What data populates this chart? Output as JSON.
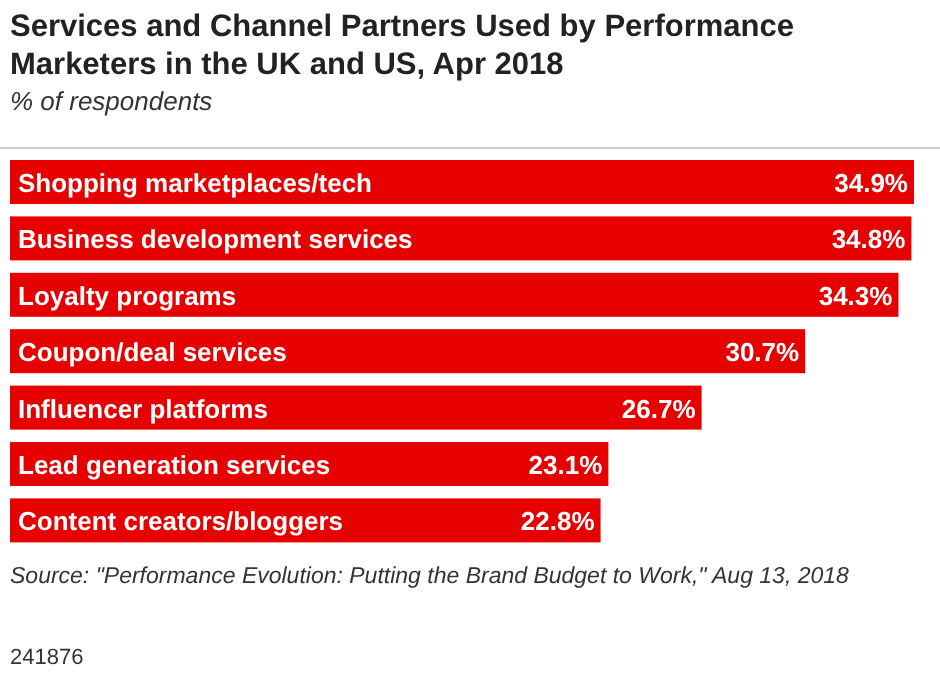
{
  "chart_data": {
    "type": "bar",
    "orientation": "horizontal",
    "title": "Services and Channel Partners Used by Performance Marketers in the UK and US, Apr 2018",
    "subtitle": "% of respondents",
    "categories": [
      "Shopping marketplaces/tech",
      "Business development services",
      "Loyalty programs",
      "Coupon/deal services",
      "Influencer platforms",
      "Lead generation services",
      "Content creators/bloggers"
    ],
    "values": [
      34.9,
      34.8,
      34.3,
      30.7,
      26.7,
      23.1,
      22.8
    ],
    "value_labels": [
      "34.9%",
      "34.8%",
      "34.3%",
      "30.7%",
      "26.7%",
      "23.1%",
      "22.8%"
    ],
    "color": "#e60000",
    "annotations": [
      "Source: \"Performance Evolution: Putting the Brand Budget to Work,\" Aug 13, 2018",
      "241876"
    ]
  }
}
